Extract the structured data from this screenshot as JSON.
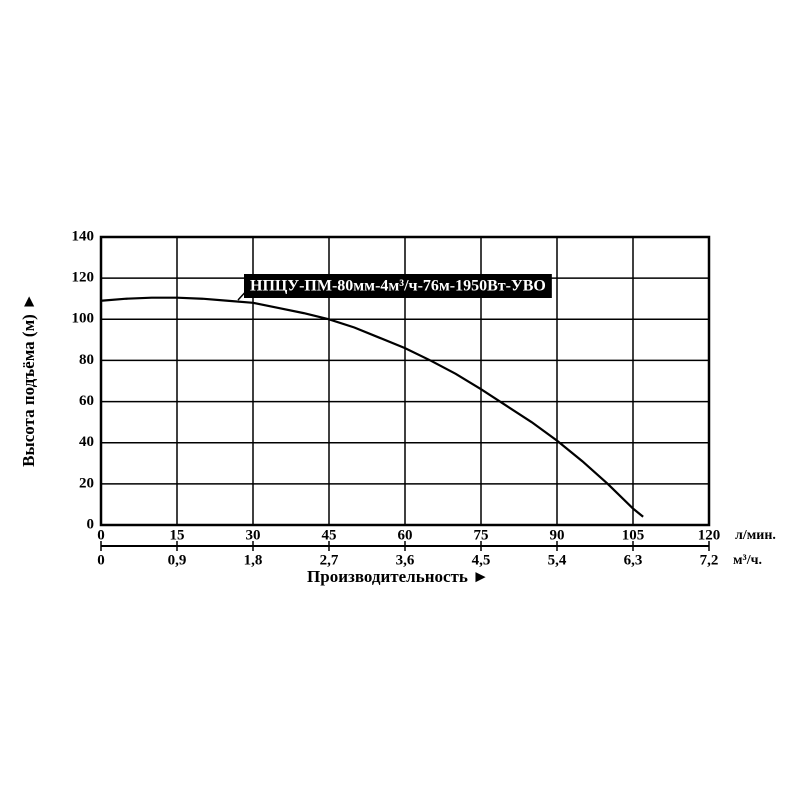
{
  "chart_data": {
    "type": "line",
    "xlabel": "Производительность ►",
    "ylabel": "Высота подъёма (м) ►",
    "x_unit": "л/мин.",
    "x2_unit": "м³/ч.",
    "xlim": [
      0,
      120
    ],
    "xticks": [
      0,
      15,
      30,
      45,
      60,
      75,
      90,
      105,
      120
    ],
    "x2lim": [
      0,
      7.2
    ],
    "x2ticks": [
      0,
      {
        "value": 0.9,
        "label": "0,9"
      },
      {
        "value": 1.8,
        "label": "1,8"
      },
      {
        "value": 2.7,
        "label": "2,7"
      },
      {
        "value": 3.6,
        "label": "3,6"
      },
      {
        "value": 4.5,
        "label": "4,5"
      },
      {
        "value": 5.4,
        "label": "5,4"
      },
      {
        "value": 6.3,
        "label": "6,3"
      },
      {
        "value": 7.2,
        "label": "7,2"
      }
    ],
    "ylim": [
      0,
      140
    ],
    "yticks": [
      0,
      20,
      40,
      60,
      80,
      100,
      120,
      140
    ],
    "grid": true,
    "x": [
      0,
      5,
      10,
      15,
      20,
      25,
      30,
      35,
      40,
      45,
      50,
      55,
      60,
      65,
      70,
      75,
      80,
      85,
      90,
      95,
      100,
      105,
      107
    ],
    "series": [
      {
        "name": "НПЦУ-ПМ-80мм-4м³/ч-76м-1950Вт-УВО",
        "color": "#000000",
        "values": [
          109,
          110,
          110.5,
          110.5,
          110,
          109,
          108,
          105.5,
          103,
          100,
          96,
          91,
          86,
          80,
          73.5,
          66,
          58,
          50,
          41,
          31,
          20,
          8,
          4
        ]
      }
    ]
  }
}
